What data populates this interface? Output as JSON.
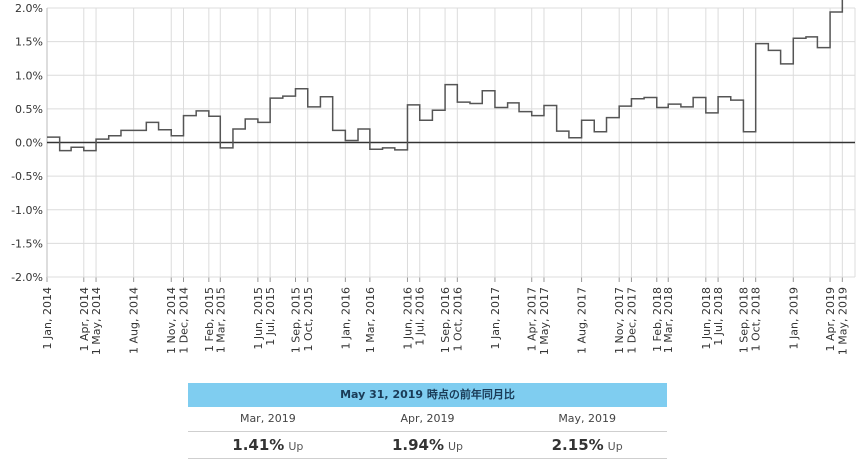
{
  "chart_data": {
    "type": "line",
    "step": true,
    "title": "",
    "xlabel": "",
    "ylabel": "",
    "ylim": [
      -0.02,
      0.02
    ],
    "grid": true,
    "y_ticks": [
      {
        "value": 0.02,
        "label": "2.0%"
      },
      {
        "value": 0.015,
        "label": "1.5%"
      },
      {
        "value": 0.01,
        "label": "1.0%"
      },
      {
        "value": 0.005,
        "label": "0.5%"
      },
      {
        "value": 0.0,
        "label": "0.0%"
      },
      {
        "value": -0.005,
        "label": "-0.5%"
      },
      {
        "value": -0.01,
        "label": "-1.0%"
      },
      {
        "value": -0.015,
        "label": "-1.5%"
      },
      {
        "value": -0.02,
        "label": "-2.0%"
      }
    ],
    "x_ticks": [
      {
        "date": "2014-01-01",
        "label": "1 Jan, 2014"
      },
      {
        "date": "2014-04-01",
        "label": "1 Apr, 2014"
      },
      {
        "date": "2014-05-01",
        "label": "1 May, 2014"
      },
      {
        "date": "2014-08-01",
        "label": "1 Aug, 2014"
      },
      {
        "date": "2014-11-01",
        "label": "1 Nov, 2014"
      },
      {
        "date": "2014-12-01",
        "label": "1 Dec, 2014"
      },
      {
        "date": "2015-02-01",
        "label": "1 Feb, 2015"
      },
      {
        "date": "2015-03-01",
        "label": "1 Mar, 2015"
      },
      {
        "date": "2015-06-01",
        "label": "1 Jun, 2015"
      },
      {
        "date": "2015-07-01",
        "label": "1 Jul, 2015"
      },
      {
        "date": "2015-09-01",
        "label": "1 Sep, 2015"
      },
      {
        "date": "2015-10-01",
        "label": "1 Oct, 2015"
      },
      {
        "date": "2016-01-01",
        "label": "1 Jan, 2016"
      },
      {
        "date": "2016-03-01",
        "label": "1 Mar, 2016"
      },
      {
        "date": "2016-06-01",
        "label": "1 Jun, 2016"
      },
      {
        "date": "2016-07-01",
        "label": "1 Jul, 2016"
      },
      {
        "date": "2016-09-01",
        "label": "1 Sep, 2016"
      },
      {
        "date": "2016-10-01",
        "label": "1 Oct, 2016"
      },
      {
        "date": "2017-01-01",
        "label": "1 Jan, 2017"
      },
      {
        "date": "2017-04-01",
        "label": "1 Apr, 2017"
      },
      {
        "date": "2017-05-01",
        "label": "1 May, 2017"
      },
      {
        "date": "2017-08-01",
        "label": "1 Aug, 2017"
      },
      {
        "date": "2017-11-01",
        "label": "1 Nov, 2017"
      },
      {
        "date": "2017-12-01",
        "label": "1 Dec, 2017"
      },
      {
        "date": "2018-02-01",
        "label": "1 Feb, 2018"
      },
      {
        "date": "2018-03-01",
        "label": "1 Mar, 2018"
      },
      {
        "date": "2018-06-01",
        "label": "1 Jun, 2018"
      },
      {
        "date": "2018-07-01",
        "label": "1 Jul, 2018"
      },
      {
        "date": "2018-09-01",
        "label": "1 Sep, 2018"
      },
      {
        "date": "2018-10-01",
        "label": "1 Oct, 2018"
      },
      {
        "date": "2019-01-01",
        "label": "1 Jan, 2019"
      },
      {
        "date": "2019-04-01",
        "label": "1 Apr, 2019"
      },
      {
        "date": "2019-05-01",
        "label": "1 May, 2019"
      }
    ],
    "x_range": [
      "2014-01-01",
      "2019-06-01"
    ],
    "series": [
      {
        "line_color": "#555555",
        "points": [
          {
            "x": "2014-01-01",
            "y": 0.0008
          },
          {
            "x": "2014-02-01",
            "y": -0.0012
          },
          {
            "x": "2014-03-01",
            "y": -0.0007
          },
          {
            "x": "2014-04-01",
            "y": -0.0012
          },
          {
            "x": "2014-05-01",
            "y": 0.0005
          },
          {
            "x": "2014-06-01",
            "y": 0.001
          },
          {
            "x": "2014-07-01",
            "y": 0.0018
          },
          {
            "x": "2014-08-01",
            "y": 0.0018
          },
          {
            "x": "2014-09-01",
            "y": 0.003
          },
          {
            "x": "2014-10-01",
            "y": 0.0019
          },
          {
            "x": "2014-11-01",
            "y": 0.001
          },
          {
            "x": "2014-12-01",
            "y": 0.004
          },
          {
            "x": "2015-01-01",
            "y": 0.0047
          },
          {
            "x": "2015-02-01",
            "y": 0.0039
          },
          {
            "x": "2015-03-01",
            "y": -0.0008
          },
          {
            "x": "2015-04-01",
            "y": 0.002
          },
          {
            "x": "2015-05-01",
            "y": 0.0035
          },
          {
            "x": "2015-06-01",
            "y": 0.003
          },
          {
            "x": "2015-07-01",
            "y": 0.0066
          },
          {
            "x": "2015-08-01",
            "y": 0.0069
          },
          {
            "x": "2015-09-01",
            "y": 0.008
          },
          {
            "x": "2015-10-01",
            "y": 0.0053
          },
          {
            "x": "2015-11-01",
            "y": 0.0068
          },
          {
            "x": "2015-12-01",
            "y": 0.0018
          },
          {
            "x": "2016-01-01",
            "y": 0.0003
          },
          {
            "x": "2016-02-01",
            "y": 0.002
          },
          {
            "x": "2016-03-01",
            "y": -0.001
          },
          {
            "x": "2016-04-01",
            "y": -0.0008
          },
          {
            "x": "2016-05-01",
            "y": -0.0011
          },
          {
            "x": "2016-06-01",
            "y": 0.0056
          },
          {
            "x": "2016-07-01",
            "y": 0.0033
          },
          {
            "x": "2016-08-01",
            "y": 0.0048
          },
          {
            "x": "2016-09-01",
            "y": 0.0086
          },
          {
            "x": "2016-10-01",
            "y": 0.006
          },
          {
            "x": "2016-11-01",
            "y": 0.0058
          },
          {
            "x": "2016-12-01",
            "y": 0.0077
          },
          {
            "x": "2017-01-01",
            "y": 0.0052
          },
          {
            "x": "2017-02-01",
            "y": 0.0059
          },
          {
            "x": "2017-03-01",
            "y": 0.0046
          },
          {
            "x": "2017-04-01",
            "y": 0.004
          },
          {
            "x": "2017-05-01",
            "y": 0.0055
          },
          {
            "x": "2017-06-01",
            "y": 0.0017
          },
          {
            "x": "2017-07-01",
            "y": 0.0007
          },
          {
            "x": "2017-08-01",
            "y": 0.0033
          },
          {
            "x": "2017-09-01",
            "y": 0.0016
          },
          {
            "x": "2017-10-01",
            "y": 0.0037
          },
          {
            "x": "2017-11-01",
            "y": 0.0054
          },
          {
            "x": "2017-12-01",
            "y": 0.0065
          },
          {
            "x": "2018-01-01",
            "y": 0.0067
          },
          {
            "x": "2018-02-01",
            "y": 0.0052
          },
          {
            "x": "2018-03-01",
            "y": 0.0057
          },
          {
            "x": "2018-04-01",
            "y": 0.0053
          },
          {
            "x": "2018-05-01",
            "y": 0.0067
          },
          {
            "x": "2018-06-01",
            "y": 0.0044
          },
          {
            "x": "2018-07-01",
            "y": 0.0068
          },
          {
            "x": "2018-08-01",
            "y": 0.0063
          },
          {
            "x": "2018-09-01",
            "y": 0.0016
          },
          {
            "x": "2018-10-01",
            "y": 0.0147
          },
          {
            "x": "2018-11-01",
            "y": 0.0137
          },
          {
            "x": "2018-12-01",
            "y": 0.0117
          },
          {
            "x": "2019-01-01",
            "y": 0.0155
          },
          {
            "x": "2019-02-01",
            "y": 0.0157
          },
          {
            "x": "2019-03-01",
            "y": 0.0141
          },
          {
            "x": "2019-04-01",
            "y": 0.0194
          },
          {
            "x": "2019-05-01",
            "y": 0.0215
          }
        ]
      }
    ]
  },
  "summary": {
    "header": "May 31, 2019 時点の前年同月比",
    "columns": [
      {
        "month": "Mar, 2019",
        "value": "1.41%",
        "direction": "Up"
      },
      {
        "month": "Apr, 2019",
        "value": "1.94%",
        "direction": "Up"
      },
      {
        "month": "May, 2019",
        "value": "2.15%",
        "direction": "Up"
      }
    ]
  }
}
